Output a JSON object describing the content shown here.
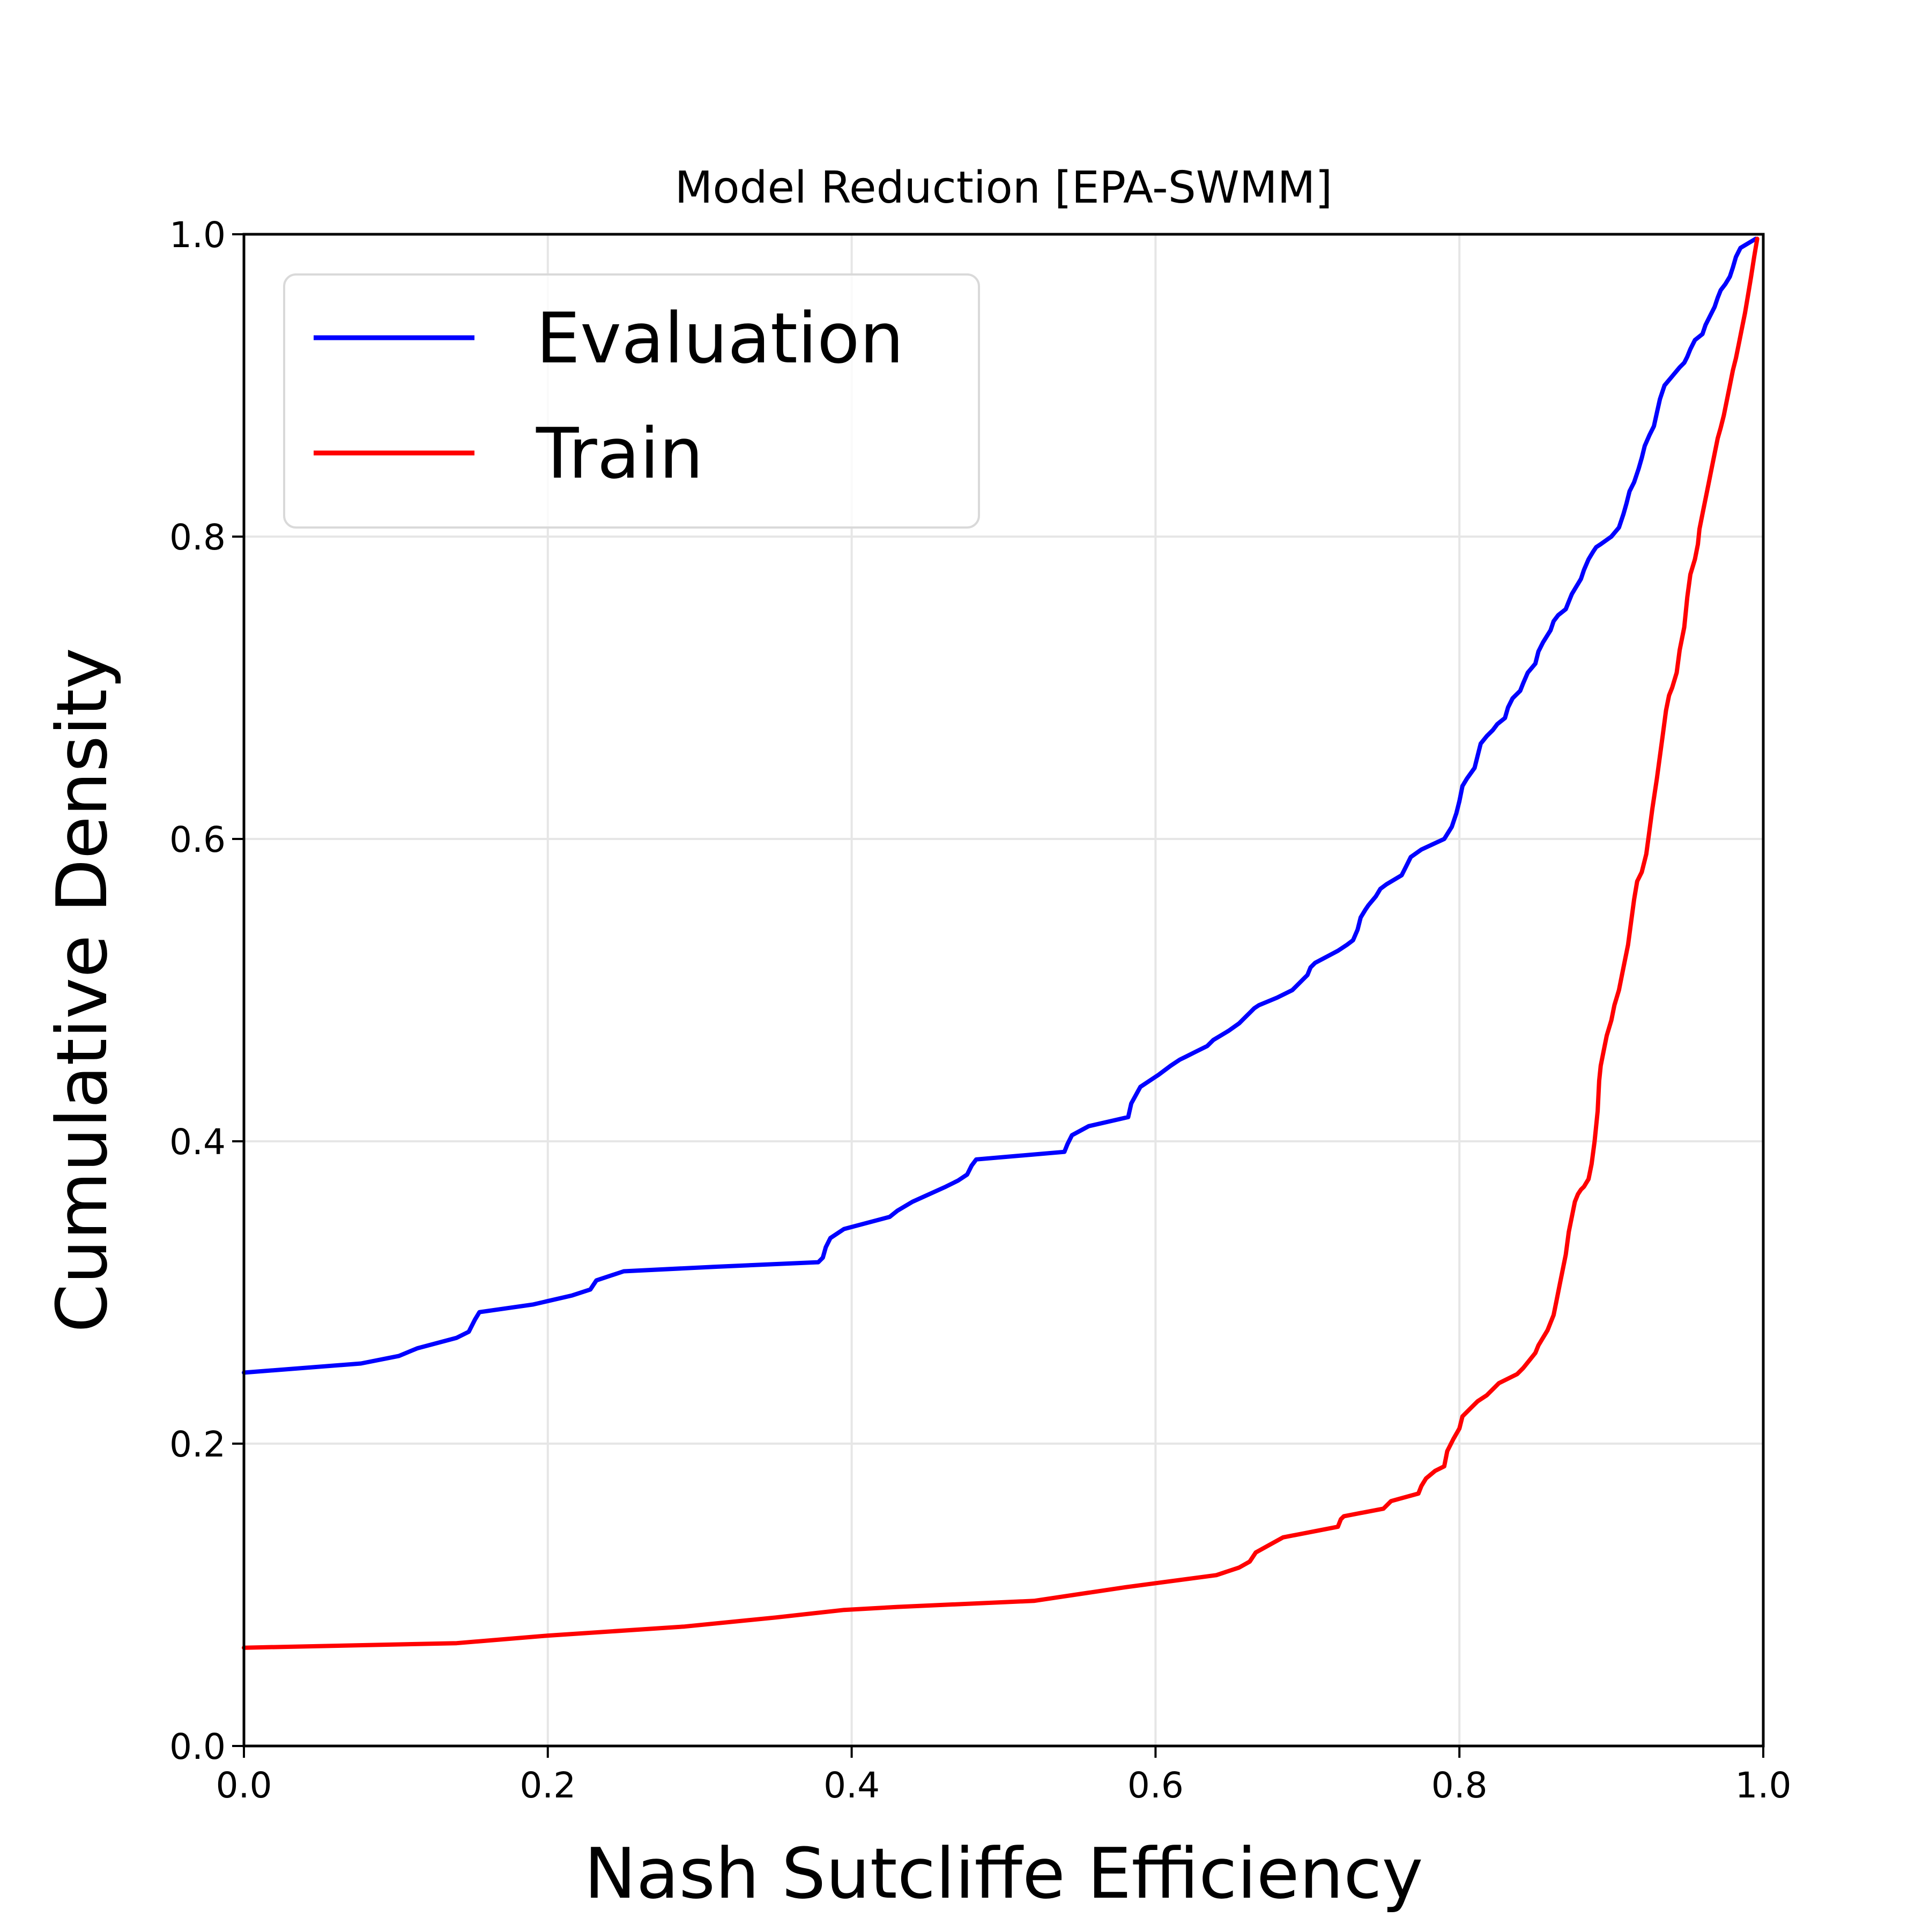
{
  "chart_data": {
    "type": "line",
    "title": "Model Reduction [EPA-SWMM]",
    "xlabel": "Nash Sutcliffe Efficiency",
    "ylabel": "Cumulative Density",
    "xlim": [
      0.0,
      1.0
    ],
    "ylim": [
      0.0,
      1.0
    ],
    "xticks": [
      "0.0",
      "0.2",
      "0.4",
      "0.6",
      "0.8",
      "1.0"
    ],
    "yticks": [
      "0.0",
      "0.2",
      "0.4",
      "0.6",
      "0.8",
      "1.0"
    ],
    "grid": true,
    "legend_position": "upper-left",
    "series": [
      {
        "name": "Evaluation",
        "color": "#0000ff",
        "x": [
          0.0,
          0.077,
          0.102,
          0.114,
          0.14,
          0.148,
          0.152,
          0.155,
          0.19,
          0.216,
          0.228,
          0.232,
          0.25,
          0.31,
          0.378,
          0.381,
          0.383,
          0.386,
          0.395,
          0.425,
          0.43,
          0.44,
          0.462,
          0.47,
          0.476,
          0.479,
          0.482,
          0.54,
          0.542,
          0.545,
          0.556,
          0.582,
          0.584,
          0.59,
          0.602,
          0.61,
          0.616,
          0.62,
          0.626,
          0.634,
          0.638,
          0.643,
          0.648,
          0.655,
          0.66,
          0.662,
          0.665,
          0.668,
          0.68,
          0.69,
          0.695,
          0.698,
          0.7,
          0.702,
          0.705,
          0.72,
          0.726,
          0.73,
          0.733,
          0.735,
          0.738,
          0.74,
          0.745,
          0.748,
          0.752,
          0.762,
          0.765,
          0.768,
          0.775,
          0.79,
          0.795,
          0.798,
          0.8,
          0.802,
          0.805,
          0.81,
          0.812,
          0.814,
          0.818,
          0.822,
          0.825,
          0.83,
          0.832,
          0.835,
          0.84,
          0.842,
          0.845,
          0.85,
          0.852,
          0.855,
          0.86,
          0.862,
          0.865,
          0.87,
          0.872,
          0.874,
          0.877,
          0.88,
          0.882,
          0.885,
          0.888,
          0.89,
          0.893,
          0.9,
          0.905,
          0.908,
          0.91,
          0.912,
          0.915,
          0.918,
          0.92,
          0.922,
          0.925,
          0.928,
          0.93,
          0.932,
          0.935,
          0.94,
          0.945,
          0.948,
          0.95,
          0.952,
          0.955,
          0.96,
          0.962,
          0.965,
          0.968,
          0.97,
          0.972,
          0.975,
          0.978,
          0.98,
          0.982,
          0.985,
          0.99,
          0.995
        ],
        "y": [
          0.247,
          0.253,
          0.258,
          0.263,
          0.27,
          0.274,
          0.282,
          0.287,
          0.292,
          0.298,
          0.302,
          0.308,
          0.314,
          0.317,
          0.32,
          0.323,
          0.33,
          0.336,
          0.342,
          0.35,
          0.354,
          0.36,
          0.37,
          0.374,
          0.378,
          0.384,
          0.388,
          0.393,
          0.398,
          0.404,
          0.41,
          0.416,
          0.425,
          0.436,
          0.444,
          0.45,
          0.454,
          0.456,
          0.459,
          0.463,
          0.467,
          0.47,
          0.473,
          0.478,
          0.483,
          0.485,
          0.488,
          0.49,
          0.495,
          0.5,
          0.505,
          0.508,
          0.51,
          0.515,
          0.518,
          0.526,
          0.53,
          0.533,
          0.54,
          0.548,
          0.553,
          0.556,
          0.562,
          0.567,
          0.57,
          0.576,
          0.582,
          0.588,
          0.593,
          0.6,
          0.608,
          0.617,
          0.625,
          0.635,
          0.64,
          0.647,
          0.655,
          0.663,
          0.668,
          0.672,
          0.676,
          0.68,
          0.687,
          0.693,
          0.698,
          0.703,
          0.71,
          0.716,
          0.724,
          0.73,
          0.738,
          0.744,
          0.748,
          0.752,
          0.757,
          0.762,
          0.767,
          0.772,
          0.778,
          0.785,
          0.79,
          0.793,
          0.795,
          0.8,
          0.806,
          0.815,
          0.822,
          0.83,
          0.836,
          0.845,
          0.852,
          0.86,
          0.867,
          0.873,
          0.882,
          0.891,
          0.9,
          0.906,
          0.912,
          0.915,
          0.919,
          0.924,
          0.93,
          0.934,
          0.94,
          0.946,
          0.952,
          0.958,
          0.963,
          0.967,
          0.972,
          0.978,
          0.985,
          0.991,
          0.994,
          0.997
        ]
      },
      {
        "name": "Train",
        "color": "#ff0000",
        "x": [
          0.0,
          0.14,
          0.2,
          0.29,
          0.35,
          0.395,
          0.43,
          0.52,
          0.58,
          0.64,
          0.655,
          0.662,
          0.666,
          0.675,
          0.684,
          0.72,
          0.722,
          0.724,
          0.75,
          0.755,
          0.773,
          0.775,
          0.778,
          0.784,
          0.79,
          0.792,
          0.796,
          0.8,
          0.802,
          0.807,
          0.812,
          0.818,
          0.826,
          0.838,
          0.842,
          0.846,
          0.85,
          0.852,
          0.855,
          0.858,
          0.86,
          0.862,
          0.864,
          0.866,
          0.868,
          0.87,
          0.872,
          0.874,
          0.876,
          0.878,
          0.88,
          0.882,
          0.885,
          0.887,
          0.889,
          0.891,
          0.892,
          0.893,
          0.895,
          0.897,
          0.9,
          0.902,
          0.905,
          0.907,
          0.909,
          0.911,
          0.913,
          0.915,
          0.917,
          0.92,
          0.923,
          0.925,
          0.927,
          0.93,
          0.932,
          0.934,
          0.936,
          0.938,
          0.94,
          0.943,
          0.945,
          0.948,
          0.95,
          0.952,
          0.955,
          0.957,
          0.958,
          0.96,
          0.962,
          0.964,
          0.966,
          0.968,
          0.97,
          0.972,
          0.974,
          0.976,
          0.978,
          0.98,
          0.982,
          0.984,
          0.986,
          0.988,
          0.99,
          0.992,
          0.994,
          0.996
        ],
        "y": [
          0.065,
          0.068,
          0.073,
          0.079,
          0.085,
          0.09,
          0.092,
          0.096,
          0.105,
          0.113,
          0.118,
          0.122,
          0.128,
          0.133,
          0.138,
          0.145,
          0.15,
          0.152,
          0.157,
          0.162,
          0.167,
          0.172,
          0.177,
          0.182,
          0.185,
          0.195,
          0.203,
          0.21,
          0.218,
          0.223,
          0.228,
          0.232,
          0.24,
          0.246,
          0.25,
          0.255,
          0.26,
          0.265,
          0.27,
          0.275,
          0.28,
          0.285,
          0.295,
          0.305,
          0.315,
          0.325,
          0.34,
          0.35,
          0.36,
          0.365,
          0.368,
          0.37,
          0.375,
          0.385,
          0.4,
          0.42,
          0.44,
          0.45,
          0.46,
          0.47,
          0.48,
          0.49,
          0.5,
          0.51,
          0.52,
          0.53,
          0.545,
          0.56,
          0.572,
          0.578,
          0.59,
          0.605,
          0.62,
          0.64,
          0.655,
          0.67,
          0.685,
          0.695,
          0.7,
          0.71,
          0.725,
          0.74,
          0.76,
          0.775,
          0.785,
          0.795,
          0.805,
          0.815,
          0.825,
          0.835,
          0.845,
          0.855,
          0.865,
          0.872,
          0.88,
          0.89,
          0.9,
          0.91,
          0.918,
          0.928,
          0.938,
          0.948,
          0.96,
          0.972,
          0.985,
          0.997
        ]
      }
    ]
  }
}
